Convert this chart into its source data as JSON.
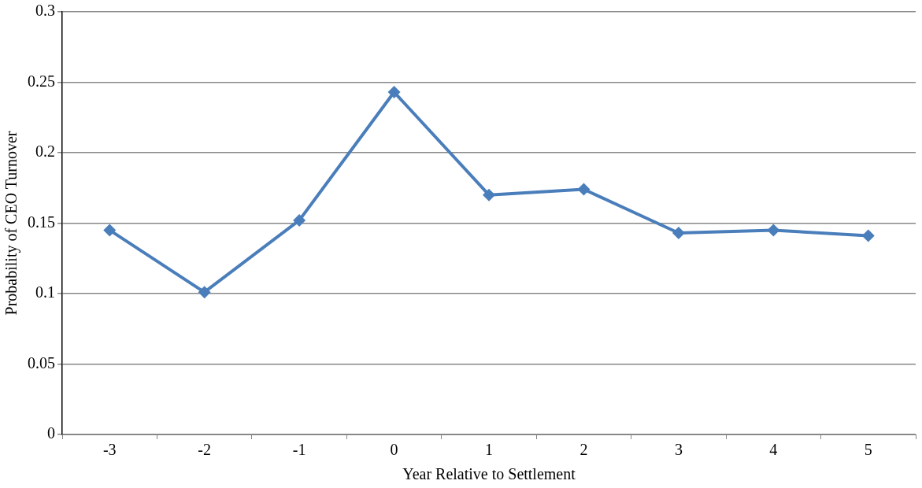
{
  "chart_data": {
    "type": "line",
    "xlabel": "Year Relative to Settlement",
    "ylabel": "Probability of CEO Turnover",
    "categories": [
      "-3",
      "-2",
      "-1",
      "0",
      "1",
      "2",
      "3",
      "4",
      "5"
    ],
    "series": [
      {
        "color": "#4a7ebb",
        "values": [
          0.145,
          0.101,
          0.152,
          0.243,
          0.17,
          0.174,
          0.143,
          0.145,
          0.141
        ]
      }
    ],
    "ylim": [
      0,
      0.3
    ],
    "yticks": [
      0,
      0.05,
      0.1,
      0.15,
      0.2,
      0.25,
      0.3
    ],
    "grid": "y",
    "legend": false,
    "marker": "diamond",
    "line_style": "solid"
  }
}
